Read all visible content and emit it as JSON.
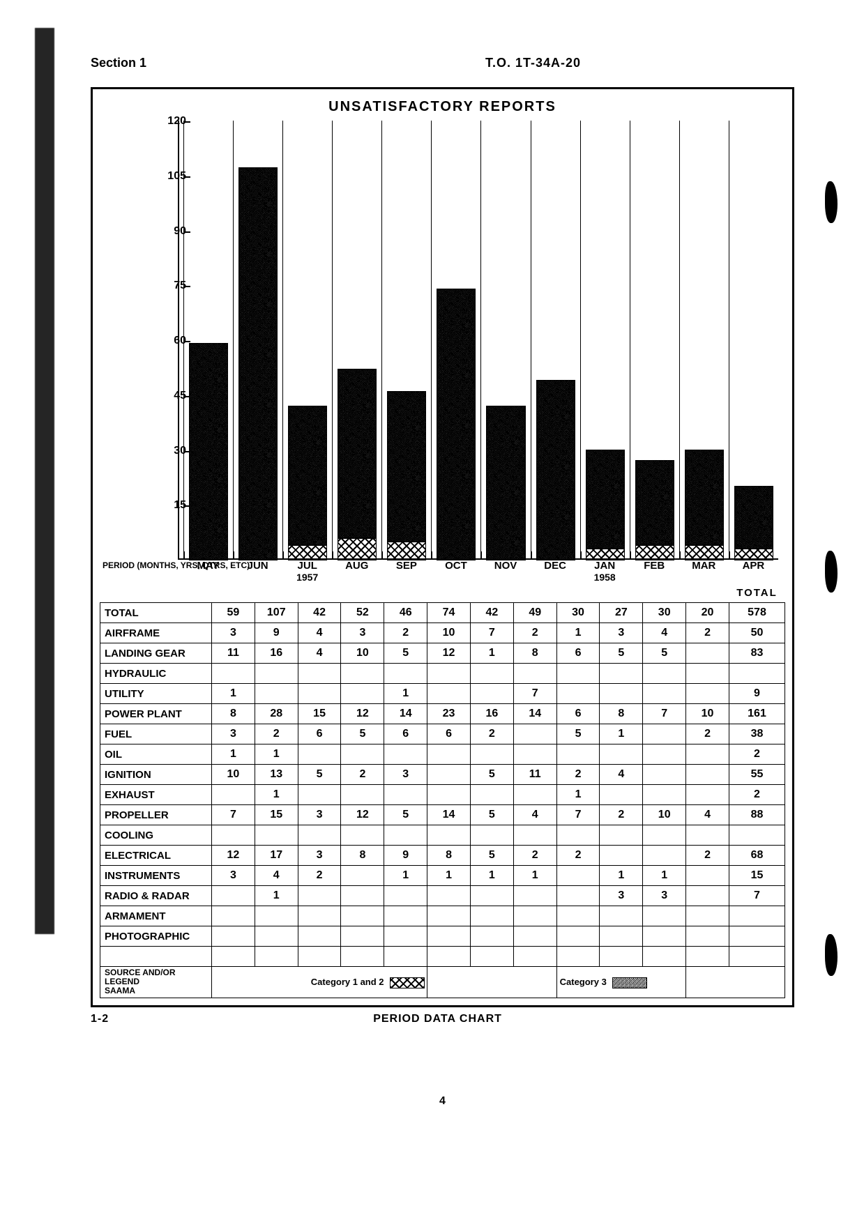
{
  "doc": {
    "section": "Section 1",
    "number": "T.O. 1T-34A-20",
    "page_code": "1-2",
    "footer_title": "PERIOD DATA CHART",
    "page_number": "4"
  },
  "chart": {
    "type": "bar",
    "title": "UNSATISFACTORY REPORTS",
    "ylim": [
      0,
      120
    ],
    "ytick_step": 15,
    "yticks": [
      15,
      30,
      45,
      60,
      75,
      90,
      105,
      120
    ],
    "period_label": "PERIOD (MONTHS,\nYRS, QTRS, ETC)",
    "months": [
      "MAY",
      "JUN",
      "JUL",
      "AUG",
      "SEP",
      "OCT",
      "NOV",
      "DEC",
      "JAN",
      "FEB",
      "MAR",
      "APR"
    ],
    "year_labels": {
      "2": "1957",
      "8": "1958"
    },
    "totals": [
      59,
      107,
      42,
      52,
      46,
      74,
      42,
      49,
      30,
      27,
      30,
      20
    ],
    "cat12": [
      0,
      0,
      4,
      6,
      5,
      0,
      0,
      0,
      3,
      4,
      4,
      3
    ],
    "bar_cat3_color": "#1a1a1a",
    "grid_color": "#000000",
    "background_color": "#ffffff",
    "label_fontsize": 16,
    "title_fontsize": 20
  },
  "table": {
    "total_header": "TOTAL",
    "rows": [
      {
        "label": "TOTAL",
        "v": [
          "59",
          "107",
          "42",
          "52",
          "46",
          "74",
          "42",
          "49",
          "30",
          "27",
          "30",
          "20"
        ],
        "t": "578",
        "cls": "total-row"
      },
      {
        "label": "AIRFRAME",
        "v": [
          "3",
          "9",
          "4",
          "3",
          "2",
          "10",
          "7",
          "2",
          "1",
          "3",
          "4",
          "2"
        ],
        "t": "50"
      },
      {
        "label": "LANDING GEAR",
        "v": [
          "11",
          "16",
          "4",
          "10",
          "5",
          "12",
          "1",
          "8",
          "6",
          "5",
          "5",
          ""
        ],
        "t": "83"
      },
      {
        "label": "HYDRAULIC",
        "v": [
          "",
          "",
          "",
          "",
          "",
          "",
          "",
          "",
          "",
          "",
          "",
          ""
        ],
        "t": ""
      },
      {
        "label": "UTILITY",
        "v": [
          "1",
          "",
          "",
          "",
          "1",
          "",
          "",
          "7",
          "",
          "",
          "",
          ""
        ],
        "t": "9"
      },
      {
        "label": "POWER PLANT",
        "v": [
          "8",
          "28",
          "15",
          "12",
          "14",
          "23",
          "16",
          "14",
          "6",
          "8",
          "7",
          "10"
        ],
        "t": "161"
      },
      {
        "label": "FUEL",
        "v": [
          "3",
          "2",
          "6",
          "5",
          "6",
          "6",
          "2",
          "",
          "5",
          "1",
          "",
          "2"
        ],
        "t": "38"
      },
      {
        "label": "OIL",
        "v": [
          "1",
          "1",
          "",
          "",
          "",
          "",
          "",
          "",
          "",
          "",
          "",
          ""
        ],
        "t": "2"
      },
      {
        "label": "IGNITION",
        "v": [
          "10",
          "13",
          "5",
          "2",
          "3",
          "",
          "5",
          "11",
          "2",
          "4",
          "",
          ""
        ],
        "t": "55"
      },
      {
        "label": "EXHAUST",
        "v": [
          "",
          "1",
          "",
          "",
          "",
          "",
          "",
          "",
          "1",
          "",
          "",
          ""
        ],
        "t": "2"
      },
      {
        "label": "PROPELLER",
        "v": [
          "7",
          "15",
          "3",
          "12",
          "5",
          "14",
          "5",
          "4",
          "7",
          "2",
          "10",
          "4"
        ],
        "t": "88"
      },
      {
        "label": "COOLING",
        "v": [
          "",
          "",
          "",
          "",
          "",
          "",
          "",
          "",
          "",
          "",
          "",
          ""
        ],
        "t": ""
      },
      {
        "label": "ELECTRICAL",
        "v": [
          "12",
          "17",
          "3",
          "8",
          "9",
          "8",
          "5",
          "2",
          "2",
          "",
          "",
          "2"
        ],
        "t": "68"
      },
      {
        "label": "INSTRUMENTS",
        "v": [
          "3",
          "4",
          "2",
          "",
          "1",
          "1",
          "1",
          "1",
          "",
          "1",
          "1",
          ""
        ],
        "t": "15"
      },
      {
        "label": "RADIO & RADAR",
        "v": [
          "",
          "1",
          "",
          "",
          "",
          "",
          "",
          "",
          "",
          "3",
          "3",
          ""
        ],
        "t": "7"
      },
      {
        "label": "ARMAMENT",
        "v": [
          "",
          "",
          "",
          "",
          "",
          "",
          "",
          "",
          "",
          "",
          "",
          ""
        ],
        "t": ""
      },
      {
        "label": "PHOTOGRAPHIC",
        "v": [
          "",
          "",
          "",
          "",
          "",
          "",
          "",
          "",
          "",
          "",
          "",
          ""
        ],
        "t": ""
      },
      {
        "label": "",
        "v": [
          "",
          "",
          "",
          "",
          "",
          "",
          "",
          "",
          "",
          "",
          "",
          ""
        ],
        "t": ""
      }
    ],
    "legend": {
      "source_label": "SOURCE AND/OR LEGEND",
      "source_value": "SAAMA",
      "cat12_label": "Category 1 and 2",
      "cat3_label": "Category 3"
    }
  }
}
